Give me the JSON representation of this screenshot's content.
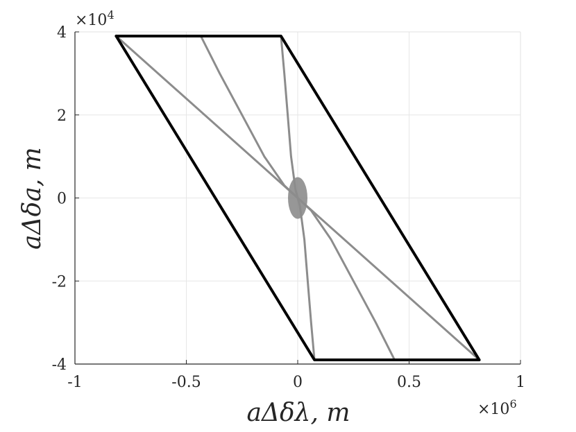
{
  "chart_data": {
    "type": "line",
    "title": "",
    "xlabel": "aΔδλ, m",
    "ylabel": "aΔδa, m",
    "xlim": [
      -1000000,
      1000000
    ],
    "ylim": [
      -40000,
      40000
    ],
    "grid": true,
    "x_multiplier": {
      "base": "×10",
      "exp": "6"
    },
    "y_multiplier": {
      "base": "×10",
      "exp": "4"
    },
    "x_ticks": [
      {
        "value": -1000000,
        "label": "-1"
      },
      {
        "value": -500000,
        "label": "-0.5"
      },
      {
        "value": 0,
        "label": "0"
      },
      {
        "value": 500000,
        "label": "0.5"
      },
      {
        "value": 1000000,
        "label": "1"
      }
    ],
    "y_ticks": [
      {
        "value": -40000,
        "label": "-4"
      },
      {
        "value": -20000,
        "label": "-2"
      },
      {
        "value": 0,
        "label": "0"
      },
      {
        "value": 20000,
        "label": "2"
      },
      {
        "value": 40000,
        "label": "4"
      }
    ],
    "series": [
      {
        "color": "#000000",
        "width": 4,
        "points": [
          [
            -815000,
            39000
          ],
          [
            -75000,
            39000
          ],
          [
            815000,
            -39000
          ],
          [
            75000,
            -39000
          ],
          [
            -815000,
            39000
          ]
        ]
      },
      {
        "color": "#8c8c8c",
        "width": 3,
        "points": [
          [
            -815000,
            39000
          ],
          [
            815000,
            -39000
          ]
        ]
      },
      {
        "color": "#8c8c8c",
        "width": 3,
        "points": [
          [
            -435000,
            39000
          ],
          [
            -350000,
            30000
          ],
          [
            -250000,
            20000
          ],
          [
            -150000,
            10000
          ],
          [
            -60000,
            3000
          ],
          [
            0,
            0
          ],
          [
            60000,
            -3000
          ],
          [
            150000,
            -10000
          ],
          [
            250000,
            -20000
          ],
          [
            350000,
            -30000
          ],
          [
            435000,
            -39000
          ]
        ]
      },
      {
        "color": "#8c8c8c",
        "width": 3,
        "points": [
          [
            -75000,
            39000
          ],
          [
            -60000,
            30000
          ],
          [
            -45000,
            20000
          ],
          [
            -30000,
            10000
          ],
          [
            -10000,
            2000
          ],
          [
            0,
            0
          ],
          [
            10000,
            -2000
          ],
          [
            30000,
            -10000
          ],
          [
            45000,
            -20000
          ],
          [
            60000,
            -30000
          ],
          [
            75000,
            -39000
          ]
        ]
      }
    ]
  }
}
